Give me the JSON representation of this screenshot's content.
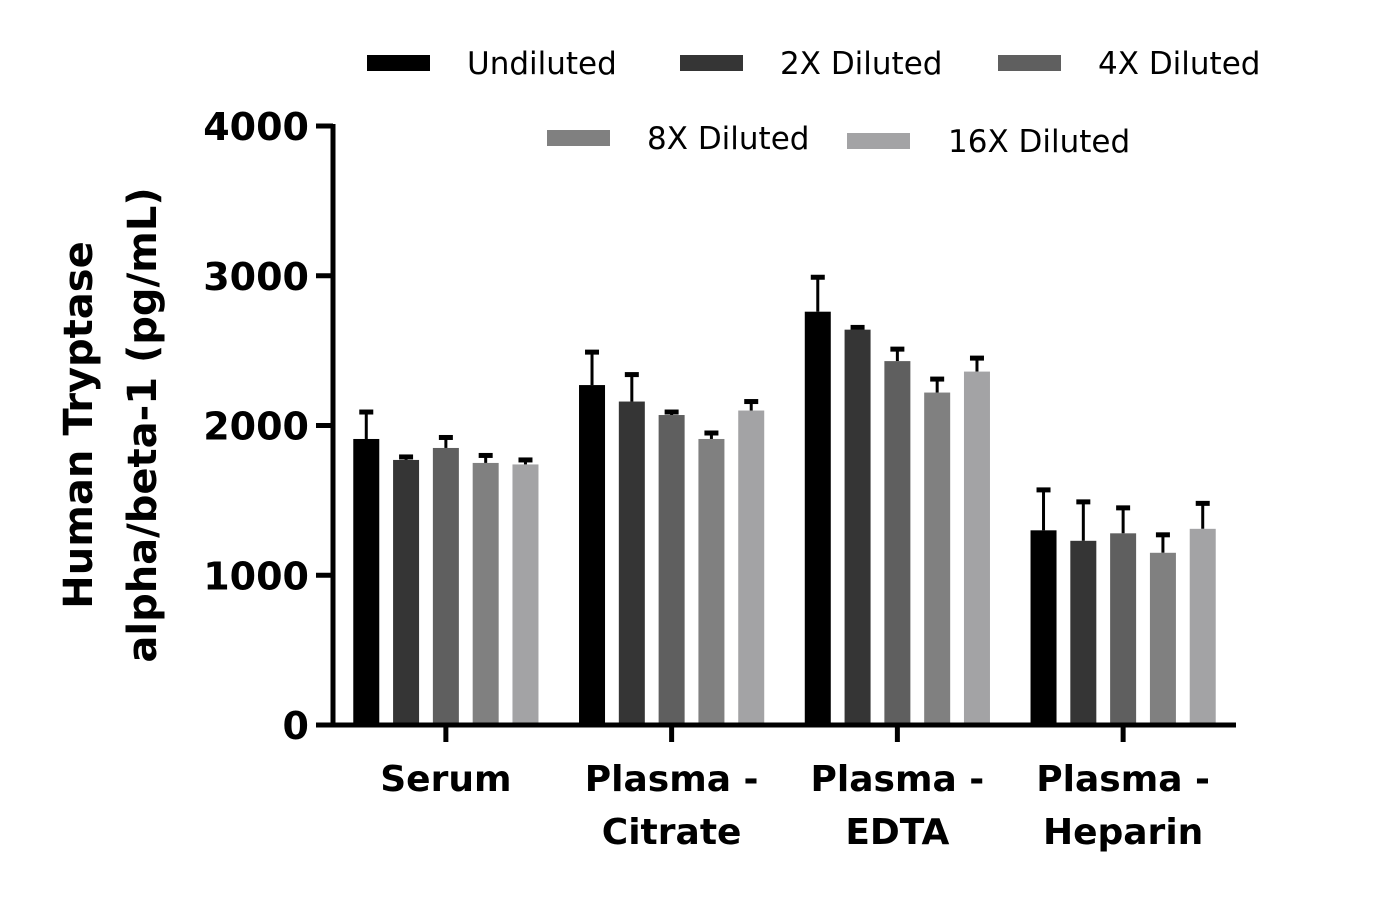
{
  "chart_data": {
    "type": "bar",
    "title": "",
    "xlabel": "",
    "ylabel": [
      "Human Tryptase",
      "alpha/beta-1 (pg/mL)"
    ],
    "ylim": [
      0,
      4000
    ],
    "yticks": [
      "0",
      "1000",
      "2000",
      "3000",
      "4000"
    ],
    "ytick_values": [
      0,
      1000,
      2000,
      3000,
      4000
    ],
    "grid": false,
    "legend_placement": "top",
    "categories": [
      [
        "Serum"
      ],
      [
        "Plasma -",
        "Citrate"
      ],
      [
        "Plasma -",
        "EDTA"
      ],
      [
        "Plasma -",
        "Heparin"
      ]
    ],
    "series": [
      {
        "name": "Undiluted",
        "color": "#000000",
        "values": [
          1910,
          2270,
          2760,
          1300
        ],
        "errors": [
          180,
          220,
          230,
          270
        ]
      },
      {
        "name": "2X Diluted",
        "color": "#353535",
        "values": [
          1770,
          2160,
          2640,
          1230
        ],
        "errors": [
          20,
          180,
          15,
          260
        ]
      },
      {
        "name": "4X Diluted",
        "color": "#5f5f5f",
        "values": [
          1850,
          2070,
          2430,
          1280
        ],
        "errors": [
          70,
          20,
          80,
          170
        ]
      },
      {
        "name": "8X Diluted",
        "color": "#808080",
        "values": [
          1750,
          1910,
          2220,
          1150
        ],
        "errors": [
          50,
          40,
          90,
          120
        ]
      },
      {
        "name": "16X Diluted",
        "color": "#a3a3a5",
        "values": [
          1740,
          2100,
          2360,
          1310
        ],
        "errors": [
          30,
          60,
          90,
          170
        ]
      }
    ]
  }
}
